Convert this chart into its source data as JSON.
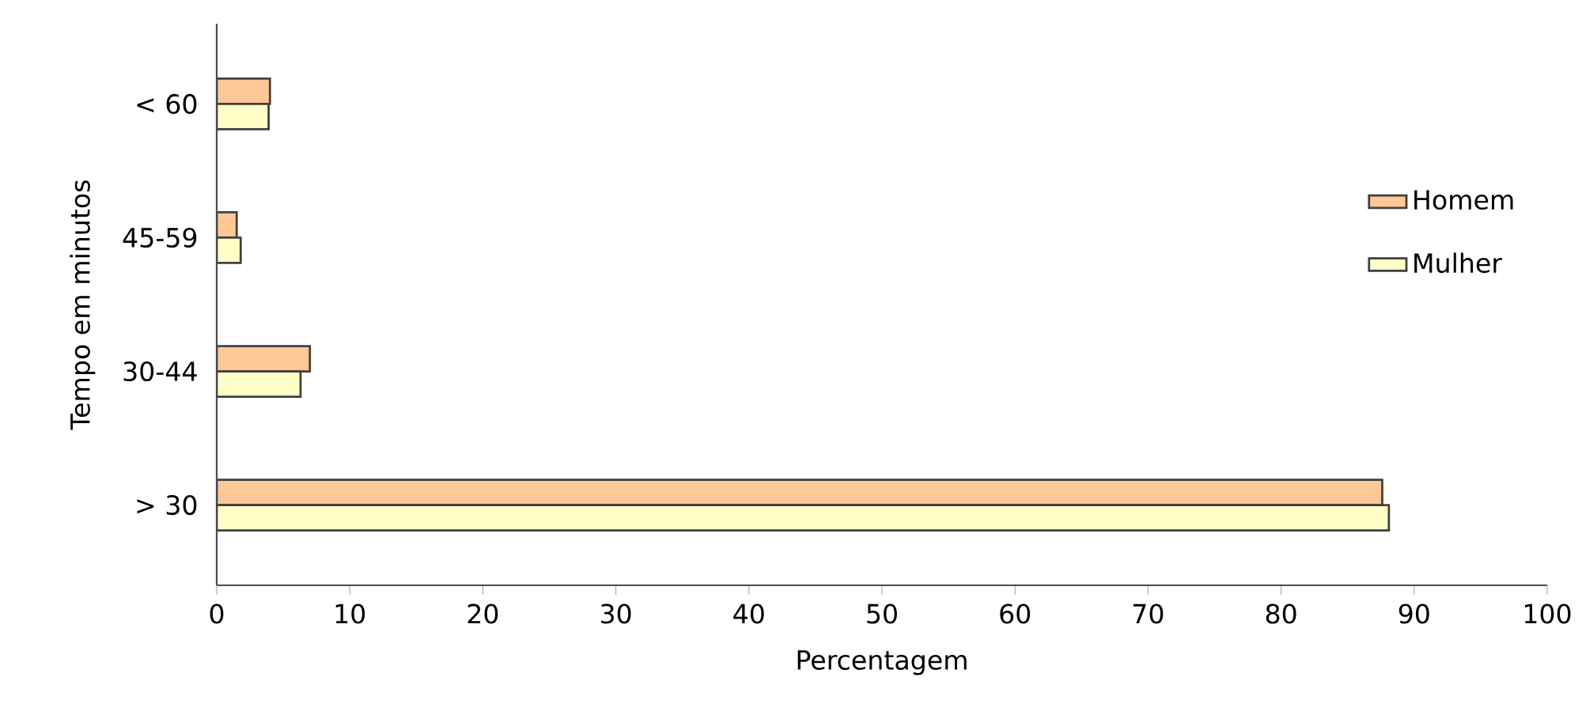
{
  "chart_data": {
    "type": "bar",
    "orientation": "horizontal",
    "xlabel": "Percentagem",
    "ylabel": "Tempo em minutos",
    "categories": [
      "< 60",
      "45-59",
      "30-44",
      "> 30"
    ],
    "series": [
      {
        "name": "Homem",
        "color": "#ffc896",
        "values": [
          4.0,
          1.5,
          7.0,
          87.6
        ]
      },
      {
        "name": "Mulher",
        "color": "#ffffc8",
        "values": [
          3.9,
          1.8,
          6.3,
          88.1
        ]
      }
    ],
    "xlim": [
      0,
      100
    ],
    "xticks": [
      0,
      10,
      20,
      30,
      40,
      50,
      60,
      70,
      80,
      90,
      100
    ],
    "grid": false,
    "legend": "right"
  }
}
